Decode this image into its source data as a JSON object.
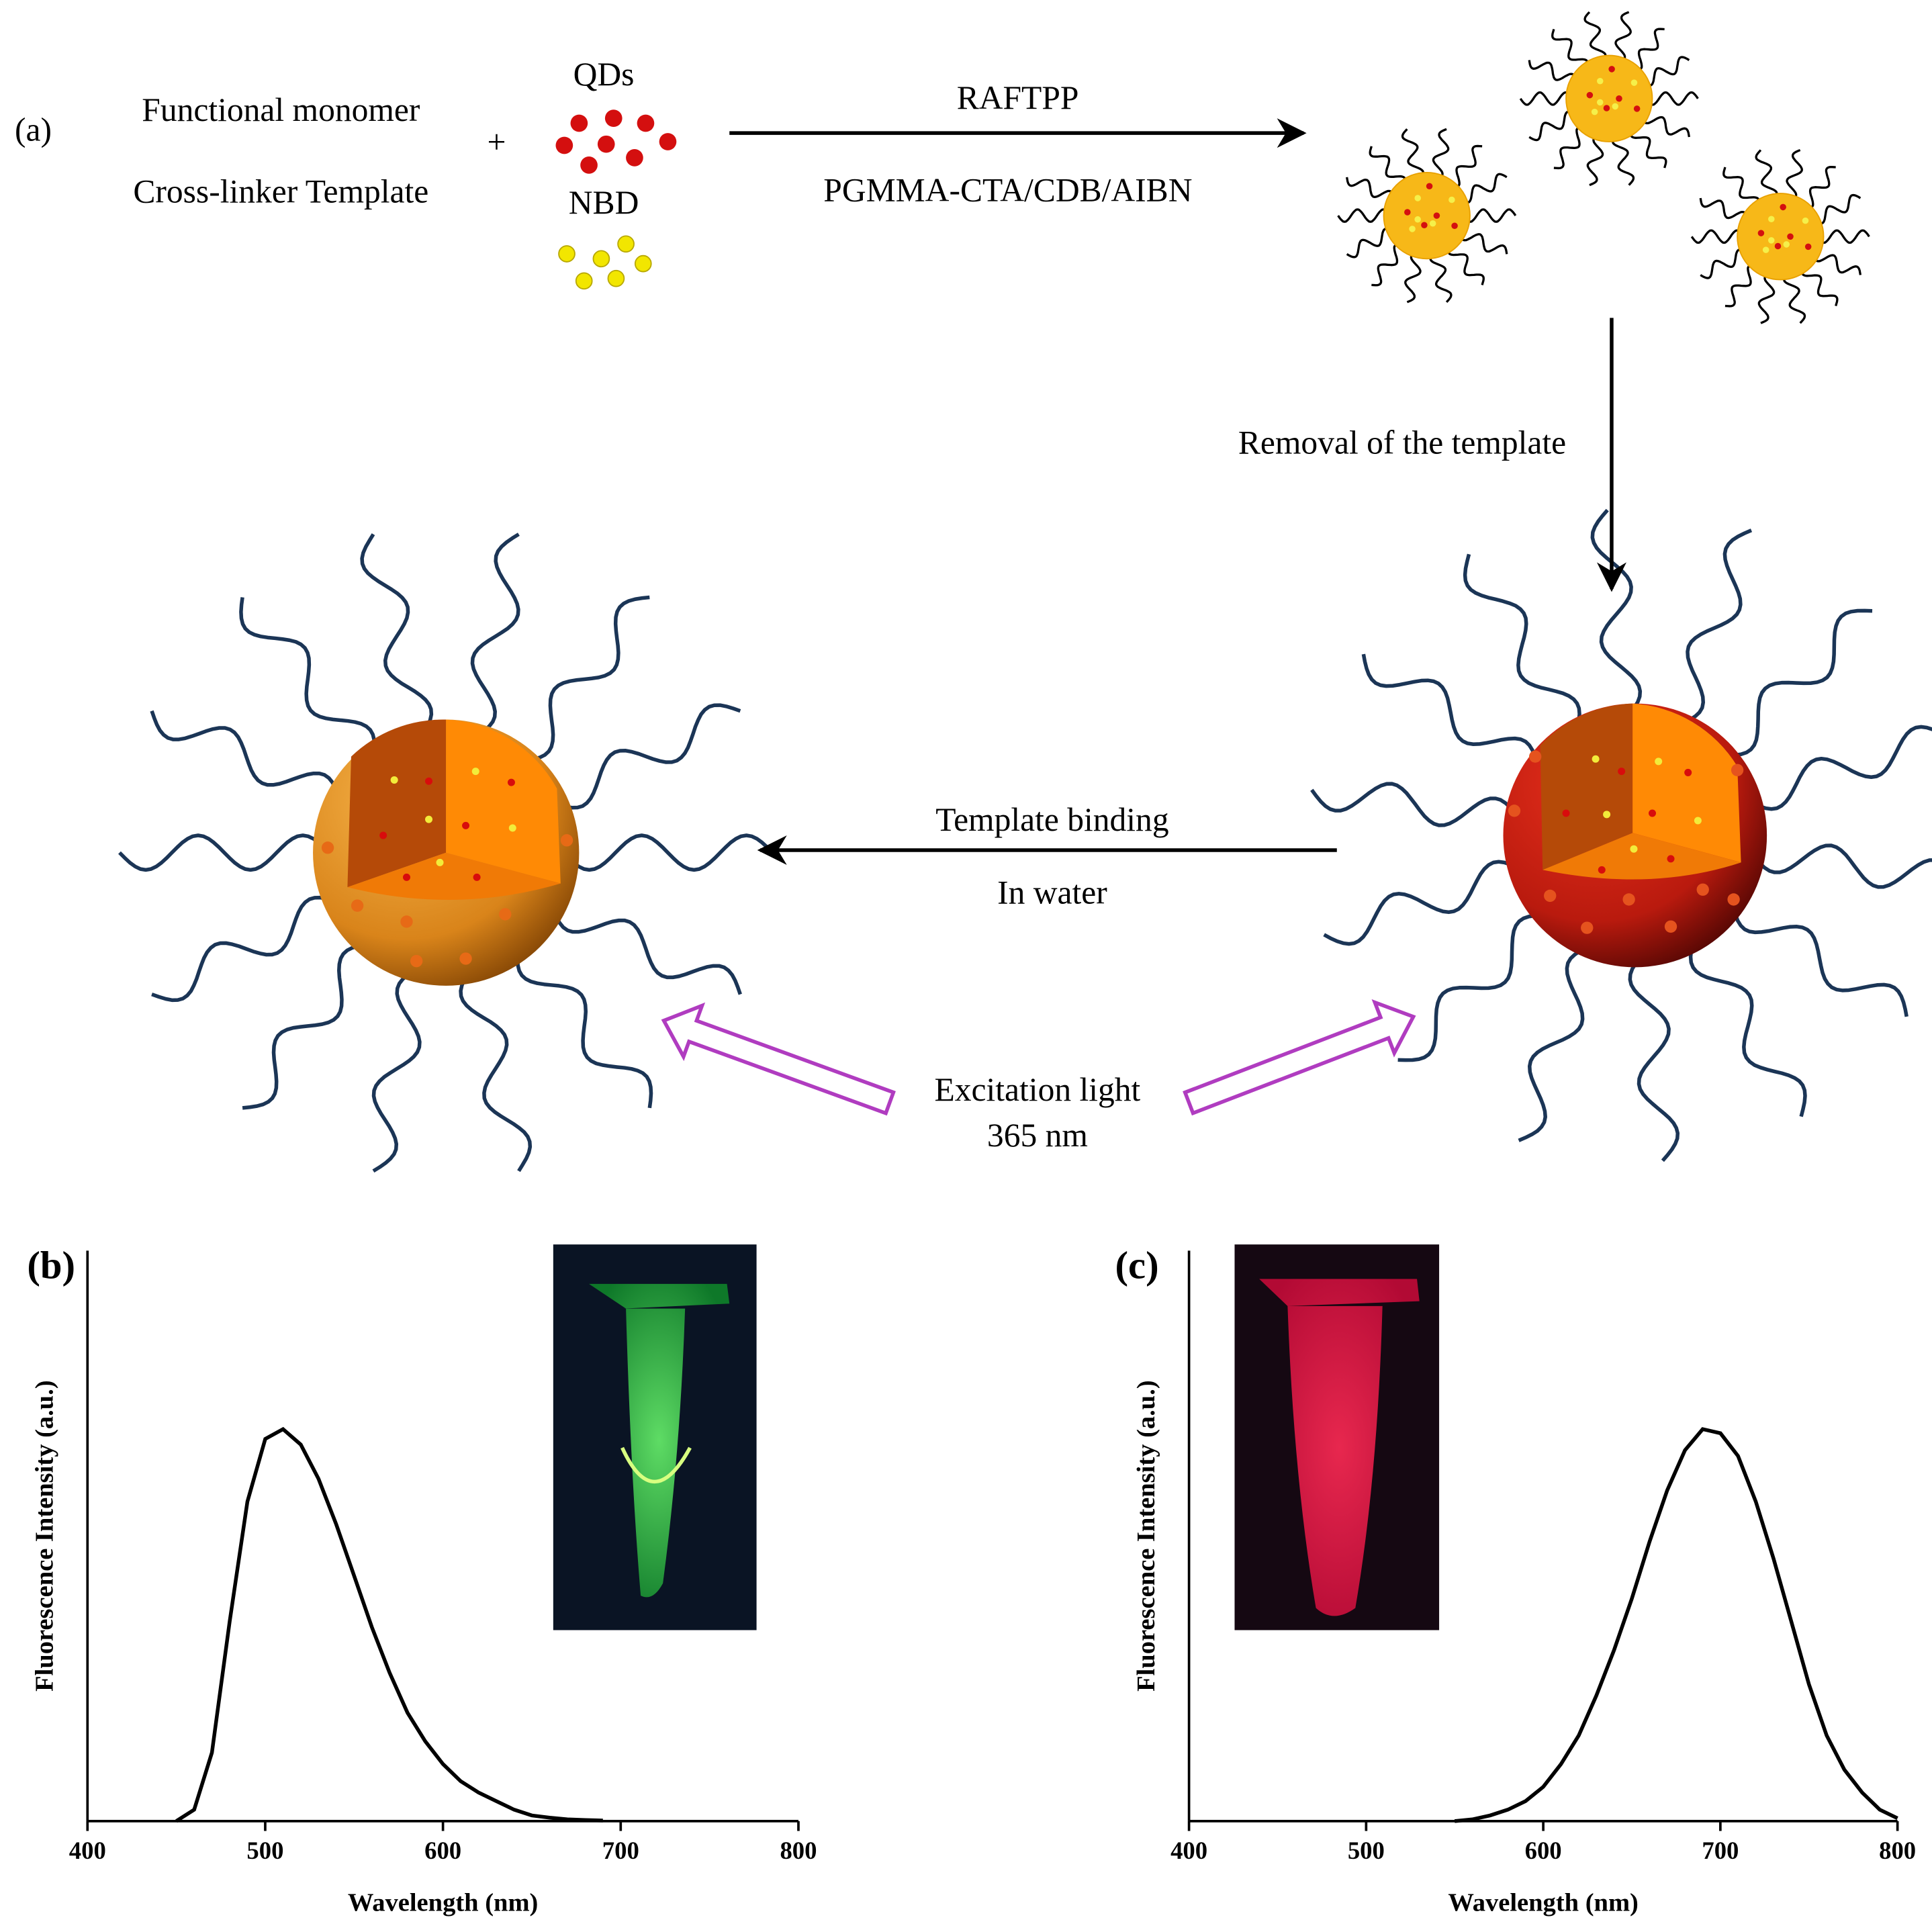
{
  "diagram": {
    "panel_label": "(a)",
    "monomer": "Functional monomer",
    "crosslinker": "Cross-linker Template",
    "plus": "+",
    "qds": "QDs",
    "nbd": "NBD",
    "step1_top": "RAFTPP",
    "step1_bottom": "PGMMA-CTA/CDB/AIBN",
    "step2": "Removal of the template",
    "step3_top": "Template binding",
    "step3_bottom": "In water",
    "excitation_top": "Excitation light",
    "excitation_bottom": "365 nm"
  },
  "chart_data": [
    {
      "type": "line",
      "label": "(b)",
      "xlabel": "Wavelength (nm)",
      "ylabel": "Fluorescence Intensity (a.u.)",
      "x": [
        450,
        460,
        470,
        480,
        490,
        500,
        510,
        520,
        530,
        540,
        550,
        560,
        570,
        580,
        590,
        600,
        610,
        620,
        630,
        640,
        650,
        660,
        670,
        680,
        690
      ],
      "values": [
        0,
        0.02,
        0.12,
        0.35,
        0.56,
        0.67,
        0.687,
        0.66,
        0.6,
        0.52,
        0.43,
        0.34,
        0.26,
        0.19,
        0.14,
        0.1,
        0.07,
        0.05,
        0.035,
        0.02,
        0.01,
        0.006,
        0.003,
        0.002,
        0.001
      ],
      "color": "#000000",
      "xlim": [
        400,
        800
      ],
      "xticks": [
        400,
        500,
        600,
        700,
        800
      ],
      "ylim": [
        0,
        1
      ]
    },
    {
      "type": "line",
      "label": "(c)",
      "xlabel": "Wavelength (nm)",
      "ylabel": "Fluorescence Intensity (a.u.)",
      "x": [
        550,
        560,
        570,
        580,
        590,
        600,
        610,
        620,
        630,
        640,
        650,
        660,
        670,
        680,
        690,
        700,
        710,
        720,
        730,
        740,
        750,
        760,
        770,
        780,
        790,
        800
      ],
      "values": [
        0,
        0.003,
        0.01,
        0.02,
        0.035,
        0.06,
        0.1,
        0.15,
        0.22,
        0.3,
        0.39,
        0.49,
        0.58,
        0.65,
        0.687,
        0.68,
        0.64,
        0.56,
        0.46,
        0.35,
        0.24,
        0.15,
        0.09,
        0.05,
        0.02,
        0.005
      ],
      "color": "#000000",
      "xlim": [
        400,
        800
      ],
      "xticks": [
        400,
        500,
        600,
        700,
        800
      ],
      "ylim": [
        0,
        1
      ]
    }
  ]
}
